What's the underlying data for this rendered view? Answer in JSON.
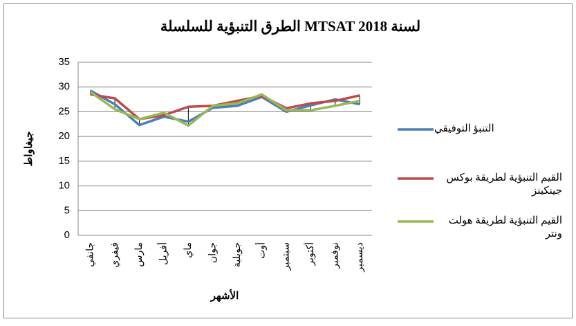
{
  "chart_data": {
    "type": "line",
    "title": "الطرق التنبؤية للسلسلة MTSAT لسنة 2018",
    "x_label": "الأشهر",
    "y_label": "جيغاواط",
    "categories": [
      "جانفي",
      "فيفري",
      "مارس",
      "أفريل",
      "ماي",
      "جوان",
      "جويلية",
      "أوت",
      "سبتمبر",
      "أكتوبر",
      "نوفمبر",
      "ديسمبر"
    ],
    "series": [
      {
        "name": "التنبؤ التوفيقي",
        "color": "#4a7ebb",
        "values": [
          29.3,
          26.5,
          22.3,
          24,
          23,
          25.8,
          26.2,
          28,
          25,
          26.3,
          27.5,
          26.5
        ]
      },
      {
        "name": "القيم التنبؤية لطريقة بوكس جينكينز",
        "color": "#be4b48",
        "values": [
          28.5,
          27.7,
          23.5,
          24.3,
          26,
          26.2,
          27.2,
          28.2,
          25.7,
          26.7,
          27.2,
          28.3
        ]
      },
      {
        "name": "القيم التنبؤية لطريقة هولت ونتر",
        "color": "#98b954",
        "values": [
          29,
          25.5,
          23.5,
          24.8,
          22.2,
          26.2,
          26.7,
          28.5,
          25.3,
          25.3,
          26.2,
          27.2
        ]
      }
    ],
    "ylim": [
      0,
      35
    ],
    "yticks": [
      0,
      5,
      10,
      15,
      20,
      25,
      30,
      35
    ],
    "grid": true,
    "legend": "right"
  }
}
